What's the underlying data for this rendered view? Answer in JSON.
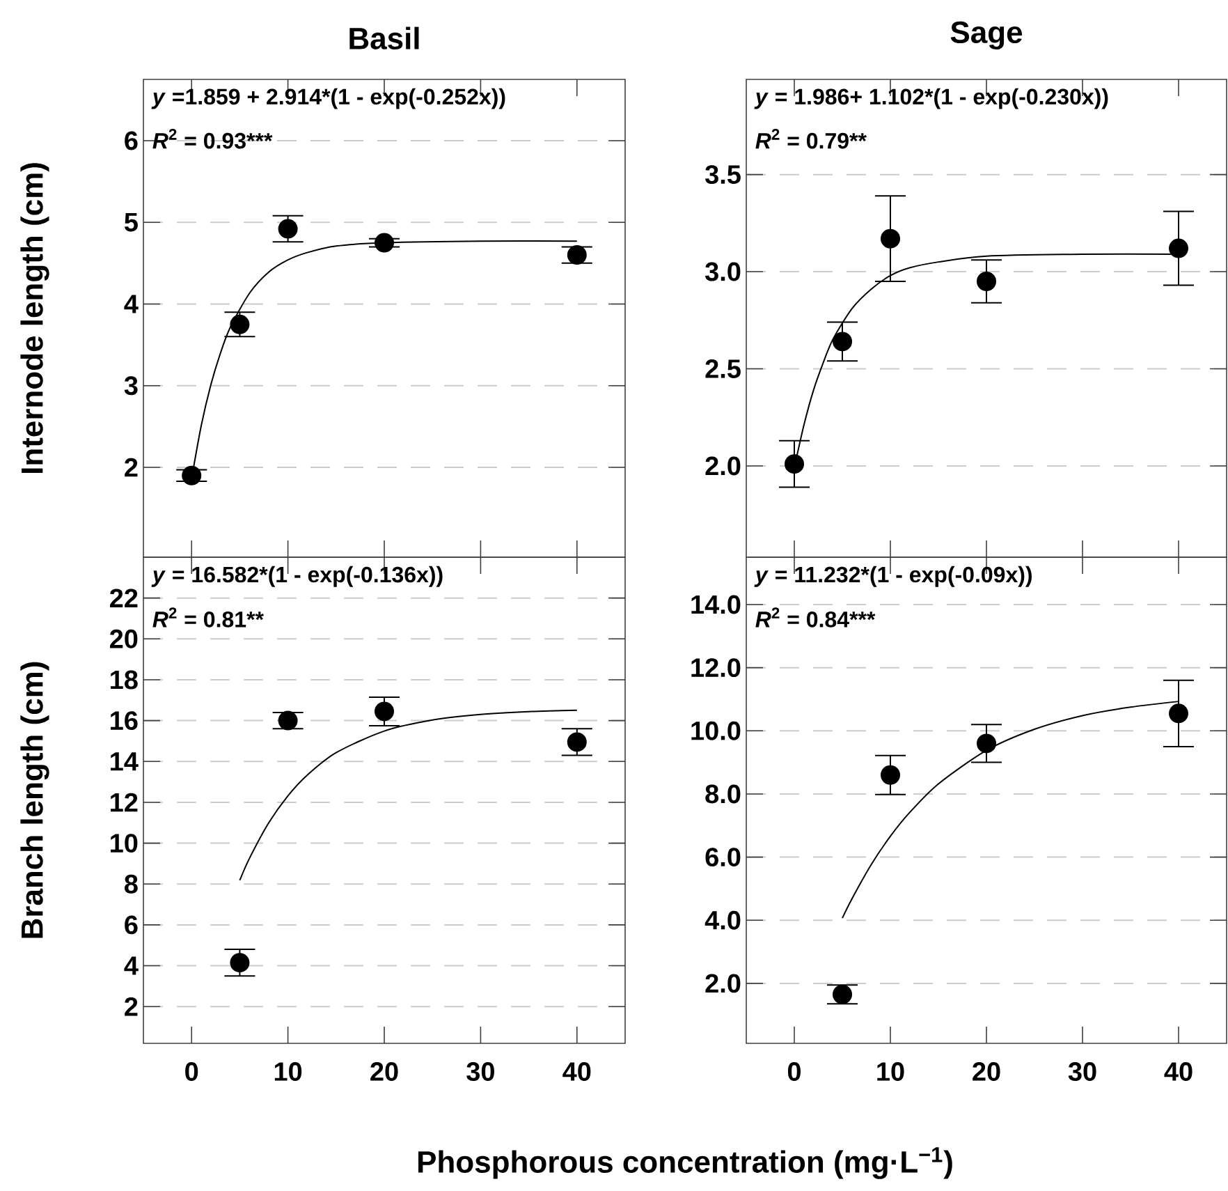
{
  "chart_data": [
    {
      "type": "scatter",
      "title": "Basil",
      "ylabel": "Internode length (cm)",
      "annotations": [
        "*y* =1.859 + 2.914*(1 - exp(-0.252x))",
        "*R*$^{2}$ = 0.93***"
      ],
      "xlim": [
        -5,
        45
      ],
      "xticks": [
        0,
        10,
        20,
        30,
        40
      ],
      "ylim": [
        0.9,
        6.75
      ],
      "yticks": [
        2,
        3,
        4,
        5,
        6
      ],
      "grid": "y",
      "tick_labels": "y",
      "marker": "circle",
      "series": [
        {
          "color": "#000000",
          "x": [
            0,
            5,
            10,
            20,
            40
          ],
          "values": [
            1.9,
            3.75,
            4.92,
            4.75,
            4.6
          ],
          "errors": [
            0.07,
            0.15,
            0.16,
            0.05,
            0.1
          ]
        },
        {
          "type": "line",
          "color": "#000000",
          "marker": "none",
          "x": [
            0,
            1,
            2,
            3,
            4,
            6,
            8,
            10,
            12,
            15,
            20,
            30,
            40
          ],
          "values": [
            1.86,
            2.51,
            3.01,
            3.4,
            3.71,
            4.13,
            4.39,
            4.54,
            4.63,
            4.71,
            4.75,
            4.77,
            4.77
          ]
        }
      ]
    },
    {
      "type": "scatter",
      "title": "Sage",
      "annotations": [
        "*y* = 1.986+ 1.102*(1 - exp(-0.230x))",
        "*R*$^{2}$ = 0.79**"
      ],
      "xlim": [
        -5,
        45
      ],
      "xticks": [
        0,
        10,
        20,
        30,
        40
      ],
      "ylim": [
        1.53,
        3.99
      ],
      "yticks": [
        3.5,
        {
          "value": 3,
          "label": "3.0"
        },
        2.5,
        {
          "value": 2,
          "label": "2.0"
        }
      ],
      "grid": "y",
      "tick_labels": "y",
      "marker": "circle",
      "series": [
        {
          "color": "#000000",
          "x": [
            0,
            5,
            10,
            20,
            40
          ],
          "values": [
            2.01,
            2.64,
            3.17,
            2.95,
            3.12
          ],
          "errors": [
            0.12,
            0.1,
            0.22,
            0.11,
            0.19
          ]
        },
        {
          "type": "line",
          "color": "#000000",
          "marker": "none",
          "x": [
            0,
            1,
            2,
            3,
            4,
            6,
            8,
            10,
            12,
            15,
            20,
            30,
            40
          ],
          "values": [
            1.99,
            2.21,
            2.39,
            2.53,
            2.65,
            2.81,
            2.91,
            2.98,
            3.02,
            3.05,
            3.08,
            3.09,
            3.09
          ]
        }
      ]
    },
    {
      "type": "scatter",
      "ylabel": "Branch length (cm)",
      "xlabel": "Phosphorous concentration (mg·L$^{−1}$)",
      "annotations": [
        "*y* = 16.582*(1 - exp(-0.136x))",
        "*R*$^{2}$ = 0.81**"
      ],
      "xlim": [
        -5,
        45
      ],
      "xticks": [
        0,
        10,
        20,
        30,
        40
      ],
      "ylim": [
        0.2,
        24
      ],
      "yticks": [
        2,
        4,
        6,
        8,
        10,
        12,
        14,
        16,
        18,
        20,
        22
      ],
      "grid": "y",
      "marker": "circle",
      "series": [
        {
          "color": "#000000",
          "x": [
            5,
            10,
            20,
            40
          ],
          "values": [
            4.15,
            16.0,
            16.45,
            14.95
          ],
          "errors": [
            0.65,
            0.4,
            0.7,
            0.65
          ]
        },
        {
          "type": "line",
          "color": "#000000",
          "marker": "none",
          "x": [
            5,
            6,
            8,
            10,
            12,
            15,
            20,
            25,
            30,
            35,
            40
          ],
          "values": [
            8.18,
            9.25,
            10.99,
            12.32,
            13.33,
            14.43,
            15.49,
            16.03,
            16.3,
            16.44,
            16.51
          ]
        }
      ]
    },
    {
      "type": "scatter",
      "annotations": [
        "*y* = 11.232*(1 - exp(-0.09x))",
        "*R*$^{2}$ = 0.84***"
      ],
      "xlim": [
        -5,
        45
      ],
      "xticks": [
        0,
        10,
        20,
        30,
        40
      ],
      "ylim": [
        0.1,
        15.5
      ],
      "yticks": [
        {
          "value": 2,
          "label": "2.0"
        },
        {
          "value": 4,
          "label": "4.0"
        },
        {
          "value": 6,
          "label": "6.0"
        },
        {
          "value": 8,
          "label": "8.0"
        },
        {
          "value": 10,
          "label": "10.0"
        },
        {
          "value": 12,
          "label": "12.0"
        },
        {
          "value": 14,
          "label": "14.0"
        }
      ],
      "grid": "y",
      "marker": "circle",
      "series": [
        {
          "color": "#000000",
          "x": [
            5,
            10,
            20,
            40
          ],
          "values": [
            1.65,
            8.6,
            9.6,
            10.55
          ],
          "errors": [
            0.3,
            0.62,
            0.6,
            1.05
          ]
        },
        {
          "type": "line",
          "color": "#000000",
          "marker": "none",
          "x": [
            5,
            6,
            8,
            10,
            12,
            15,
            20,
            25,
            30,
            35,
            40
          ],
          "values": [
            4.07,
            4.68,
            5.76,
            6.66,
            7.41,
            8.32,
            9.38,
            10.05,
            10.48,
            10.75,
            10.93
          ]
        }
      ]
    }
  ]
}
